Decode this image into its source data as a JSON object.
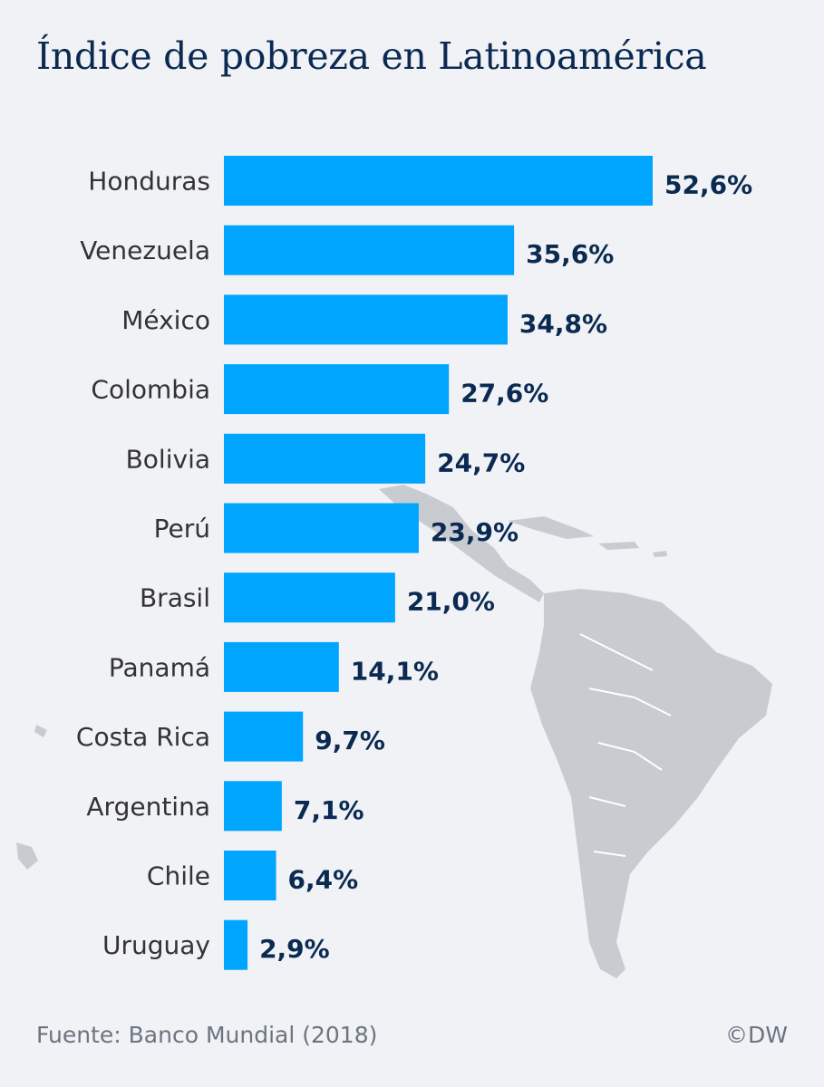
{
  "title": "Índice de pobreza en Latinoamérica",
  "source": "Fuente: Banco Mundial (2018)",
  "credit": "©DW",
  "colors": {
    "background": "#f0f2f5",
    "bar": "#00a5ff",
    "value_label": "#0b2a52",
    "category_label": "#333333",
    "map": "#c8cbd0",
    "map_border": "#ffffff"
  },
  "chart_data": {
    "type": "bar",
    "orientation": "horizontal",
    "title": "Índice de pobreza en Latinoamérica",
    "xlabel": "",
    "ylabel": "",
    "xlim": [
      0,
      52.6
    ],
    "grid": false,
    "categories": [
      "Honduras",
      "Venezuela",
      "México",
      "Colombia",
      "Bolivia",
      "Perú",
      "Brasil",
      "Panamá",
      "Costa Rica",
      "Argentina",
      "Chile",
      "Uruguay"
    ],
    "values": [
      52.6,
      35.6,
      34.8,
      27.6,
      24.7,
      23.9,
      21.0,
      14.1,
      9.7,
      7.1,
      6.4,
      2.9
    ],
    "value_labels": [
      "52,6%",
      "35,6%",
      "34,8%",
      "27,6%",
      "24,7%",
      "23,9%",
      "21,0%",
      "14,1%",
      "9,7%",
      "7,1%",
      "6,4%",
      "2,9%"
    ]
  }
}
